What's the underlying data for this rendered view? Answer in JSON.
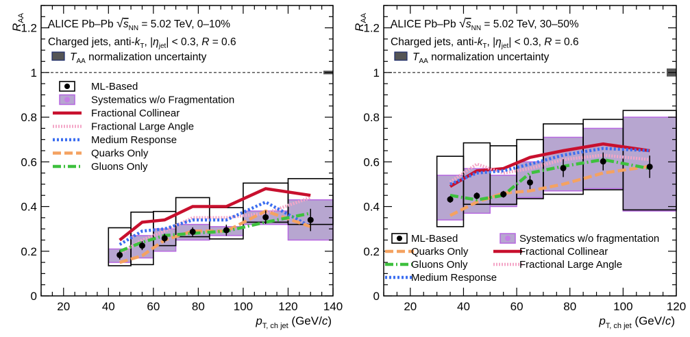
{
  "chart_data": [
    {
      "type": "scatter",
      "title": "ALICE Pb–Pb √sNN = 5.02 TeV, 0–10%",
      "annotations": [
        "ALICE Pb–Pb",
        "= 5.02 TeV, 0–10%",
        "Charged jets, anti-",
        ", |",
        "| < 0.3, ",
        " = 0.6",
        " normalization uncertainty"
      ],
      "ylabel": "R_AA",
      "xlabel": "p_T, ch jet (GeV/c)",
      "xlim": [
        10,
        140
      ],
      "ylim": [
        0,
        1.3
      ],
      "xticks": [
        "20",
        "40",
        "60",
        "80",
        "100",
        "120",
        "140"
      ],
      "yticks": [
        "0",
        "0.2",
        "0.4",
        "0.6",
        "0.8",
        "1",
        "1.2"
      ],
      "norm_unc": {
        "x": 140,
        "y": 1.0,
        "half": 0.008
      },
      "legend_entries": [
        "ML-Based",
        "Systematics w/o Fragmentation",
        "Fractional Collinear",
        "Fractional Large Angle",
        "Medium Response",
        "Quarks Only",
        "Gluons Only"
      ],
      "ml_based": {
        "x": [
          45,
          55,
          65,
          77.5,
          92.5,
          110,
          130
        ],
        "y": [
          0.183,
          0.225,
          0.258,
          0.287,
          0.294,
          0.352,
          0.34
        ],
        "bin_lo": [
          40,
          50,
          60,
          70,
          85,
          100,
          120
        ],
        "bin_hi": [
          50,
          60,
          70,
          85,
          100,
          120,
          140
        ],
        "stat_err": [
          0.02,
          0.02,
          0.02,
          0.02,
          0.025,
          0.03,
          0.05
        ],
        "sys_lo": [
          0.135,
          0.14,
          0.225,
          0.265,
          0.255,
          0.33,
          0.32
        ],
        "sys_hi": [
          0.305,
          0.375,
          0.378,
          0.44,
          0.395,
          0.505,
          0.525
        ],
        "frag_lo": [
          0.15,
          0.17,
          0.2,
          0.25,
          0.27,
          0.32,
          0.25
        ],
        "frag_hi": [
          0.21,
          0.27,
          0.3,
          0.32,
          0.31,
          0.38,
          0.43
        ]
      },
      "series": [
        {
          "name": "Fractional Collinear",
          "color": "#c8102e",
          "dash": "none",
          "x": [
            45,
            55,
            65,
            77.5,
            92.5,
            110,
            130
          ],
          "y": [
            0.25,
            0.33,
            0.34,
            0.4,
            0.4,
            0.48,
            0.45
          ]
        },
        {
          "name": "Fractional Large Angle",
          "color": "#f4a6c7",
          "dash": "2,2",
          "x": [
            45,
            55,
            65,
            77.5,
            92.5,
            110,
            130
          ],
          "y": [
            0.19,
            0.25,
            0.29,
            0.35,
            0.35,
            0.37,
            0.44
          ]
        },
        {
          "name": "Medium Response",
          "color": "#3b6ef0",
          "dash": "3,3",
          "x": [
            45,
            55,
            65,
            77.5,
            92.5,
            110,
            130
          ],
          "y": [
            0.23,
            0.29,
            0.3,
            0.34,
            0.34,
            0.42,
            0.31
          ]
        },
        {
          "name": "Quarks Only",
          "color": "#f4a261",
          "dash": "12,5",
          "x": [
            45,
            55,
            65,
            77.5,
            92.5,
            110,
            130
          ],
          "y": [
            0.15,
            0.18,
            0.25,
            0.29,
            0.29,
            0.38,
            0.31
          ]
        },
        {
          "name": "Gluons Only",
          "color": "#3ec03e",
          "dash": "12,4,2,4",
          "x": [
            45,
            55,
            65,
            77.5,
            92.5,
            110,
            130
          ],
          "y": [
            0.2,
            0.24,
            0.27,
            0.28,
            0.29,
            0.33,
            0.37
          ]
        }
      ]
    },
    {
      "type": "scatter",
      "title": "ALICE Pb–Pb √sNN = 5.02 TeV, 30–50%",
      "annotations": [
        "ALICE Pb–Pb",
        "= 5.02 TeV, 30–50%",
        "Charged jets, anti-",
        ", |",
        "| < 0.3, ",
        " = 0.6",
        " normalization uncertainty"
      ],
      "ylabel": "R_AA",
      "xlabel": "p_T, ch jet (GeV/c)",
      "xlim": [
        10,
        120
      ],
      "ylim": [
        0,
        1.3
      ],
      "xticks": [
        "20",
        "40",
        "60",
        "80",
        "100",
        "120"
      ],
      "yticks": [
        "0",
        "0.2",
        "0.4",
        "0.6",
        "0.8",
        "1",
        "1.2"
      ],
      "norm_unc": {
        "x": 120,
        "y": 1.0,
        "half": 0.018
      },
      "legend_entries": [
        "ML-Based",
        "Quarks Only",
        "Gluons Only",
        "Medium Response",
        "Systematics w/o fragmentation",
        "Fractional Collinear",
        "Fractional Large Angle"
      ],
      "ml_based": {
        "x": [
          35,
          45,
          55,
          65,
          77.5,
          92.5,
          110
        ],
        "y": [
          0.432,
          0.448,
          0.455,
          0.508,
          0.572,
          0.602,
          0.578
        ],
        "bin_lo": [
          30,
          40,
          50,
          60,
          70,
          85,
          100
        ],
        "bin_hi": [
          40,
          50,
          60,
          70,
          85,
          100,
          120
        ],
        "stat_err": [
          0.015,
          0.015,
          0.015,
          0.03,
          0.04,
          0.04,
          0.05
        ],
        "sys_lo": [
          0.31,
          0.41,
          0.41,
          0.435,
          0.455,
          0.475,
          0.385
        ],
        "sys_hi": [
          0.625,
          0.685,
          0.672,
          0.7,
          0.77,
          0.79,
          0.83
        ],
        "frag_lo": [
          0.34,
          0.37,
          0.4,
          0.44,
          0.47,
          0.48,
          0.38
        ],
        "frag_hi": [
          0.54,
          0.57,
          0.54,
          0.6,
          0.71,
          0.75,
          0.8
        ]
      },
      "series": [
        {
          "name": "Fractional Collinear",
          "color": "#c8102e",
          "dash": "none",
          "x": [
            35,
            45,
            55,
            65,
            77.5,
            92.5,
            110
          ],
          "y": [
            0.49,
            0.56,
            0.57,
            0.62,
            0.65,
            0.68,
            0.65
          ]
        },
        {
          "name": "Fractional Large Angle",
          "color": "#f4a6c7",
          "dash": "2,2",
          "x": [
            35,
            45,
            55,
            65,
            77.5,
            92.5,
            110
          ],
          "y": [
            0.51,
            0.59,
            0.55,
            0.57,
            0.61,
            0.63,
            0.61
          ]
        },
        {
          "name": "Medium Response",
          "color": "#3b6ef0",
          "dash": "3,3",
          "x": [
            35,
            45,
            55,
            65,
            77.5,
            92.5,
            110
          ],
          "y": [
            0.5,
            0.55,
            0.56,
            0.59,
            0.63,
            0.66,
            0.65
          ]
        },
        {
          "name": "Quarks Only",
          "color": "#f4a261",
          "dash": "12,5",
          "x": [
            35,
            45,
            55,
            65,
            77.5,
            92.5,
            110
          ],
          "y": [
            0.36,
            0.42,
            0.46,
            0.47,
            0.5,
            0.55,
            0.58
          ]
        },
        {
          "name": "Gluons Only",
          "color": "#3ec03e",
          "dash": "12,4,2,4",
          "x": [
            35,
            45,
            55,
            65,
            77.5,
            92.5,
            110
          ],
          "y": [
            0.45,
            0.43,
            0.45,
            0.55,
            0.58,
            0.61,
            0.57
          ]
        }
      ]
    }
  ]
}
